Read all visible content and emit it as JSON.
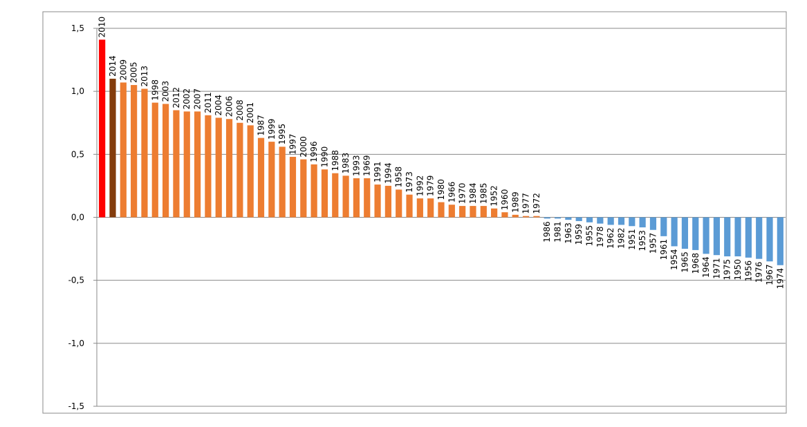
{
  "chart_data": {
    "type": "bar",
    "categories": [
      "2010",
      "2014",
      "2009",
      "2005",
      "2013",
      "1998",
      "2003",
      "2012",
      "2002",
      "2007",
      "2011",
      "2004",
      "2006",
      "2008",
      "2001",
      "1987",
      "1999",
      "1995",
      "1997",
      "2000",
      "1996",
      "1990",
      "1988",
      "1983",
      "1993",
      "1969",
      "1991",
      "1994",
      "1958",
      "1973",
      "1992",
      "1979",
      "1980",
      "1966",
      "1970",
      "1984",
      "1985",
      "1952",
      "1960",
      "1989",
      "1977",
      "1972",
      "1986",
      "1981",
      "1963",
      "1959",
      "1955",
      "1978",
      "1962",
      "1982",
      "1951",
      "1953",
      "1957",
      "1961",
      "1954",
      "1965",
      "1968",
      "1964",
      "1971",
      "1975",
      "1950",
      "1956",
      "1976",
      "1967",
      "1974"
    ],
    "values": [
      1.41,
      1.1,
      1.07,
      1.05,
      1.02,
      0.91,
      0.9,
      0.85,
      0.84,
      0.84,
      0.81,
      0.79,
      0.78,
      0.75,
      0.73,
      0.63,
      0.6,
      0.56,
      0.48,
      0.46,
      0.42,
      0.38,
      0.35,
      0.33,
      0.31,
      0.31,
      0.26,
      0.25,
      0.22,
      0.18,
      0.15,
      0.15,
      0.12,
      0.1,
      0.09,
      0.09,
      0.09,
      0.07,
      0.04,
      0.02,
      0.01,
      0.01,
      -0.01,
      -0.01,
      -0.02,
      -0.03,
      -0.04,
      -0.05,
      -0.06,
      -0.06,
      -0.07,
      -0.08,
      -0.1,
      -0.15,
      -0.23,
      -0.25,
      -0.26,
      -0.29,
      -0.3,
      -0.31,
      -0.31,
      -0.32,
      -0.33,
      -0.35,
      -0.38
    ],
    "colors": [
      "#ff0000",
      "#843c0c",
      "#ed7d31",
      "#ed7d31",
      "#ed7d31",
      "#ed7d31",
      "#ed7d31",
      "#ed7d31",
      "#ed7d31",
      "#ed7d31",
      "#ed7d31",
      "#ed7d31",
      "#ed7d31",
      "#ed7d31",
      "#ed7d31",
      "#ed7d31",
      "#ed7d31",
      "#ed7d31",
      "#ed7d31",
      "#ed7d31",
      "#ed7d31",
      "#ed7d31",
      "#ed7d31",
      "#ed7d31",
      "#ed7d31",
      "#ed7d31",
      "#ed7d31",
      "#ed7d31",
      "#ed7d31",
      "#ed7d31",
      "#ed7d31",
      "#ed7d31",
      "#ed7d31",
      "#ed7d31",
      "#ed7d31",
      "#ed7d31",
      "#ed7d31",
      "#ed7d31",
      "#ed7d31",
      "#ed7d31",
      "#ed7d31",
      "#ed7d31",
      "#5b9bd5",
      "#5b9bd5",
      "#5b9bd5",
      "#5b9bd5",
      "#5b9bd5",
      "#5b9bd5",
      "#5b9bd5",
      "#5b9bd5",
      "#5b9bd5",
      "#5b9bd5",
      "#5b9bd5",
      "#5b9bd5",
      "#5b9bd5",
      "#5b9bd5",
      "#5b9bd5",
      "#5b9bd5",
      "#5b9bd5",
      "#5b9bd5",
      "#5b9bd5",
      "#5b9bd5",
      "#5b9bd5",
      "#5b9bd5",
      "#5b9bd5"
    ],
    "ylim": [
      -1.5,
      1.5
    ],
    "yticks": [
      {
        "value": -1.5,
        "label": "-1,5"
      },
      {
        "value": -1.0,
        "label": "-1,0"
      },
      {
        "value": -0.5,
        "label": "-0,5"
      },
      {
        "value": 0,
        "label": "0,0"
      },
      {
        "value": 0.5,
        "label": "0,5"
      },
      {
        "value": 1.0,
        "label": "1,0"
      },
      {
        "value": 1.5,
        "label": "1,5"
      }
    ],
    "grid": true
  }
}
